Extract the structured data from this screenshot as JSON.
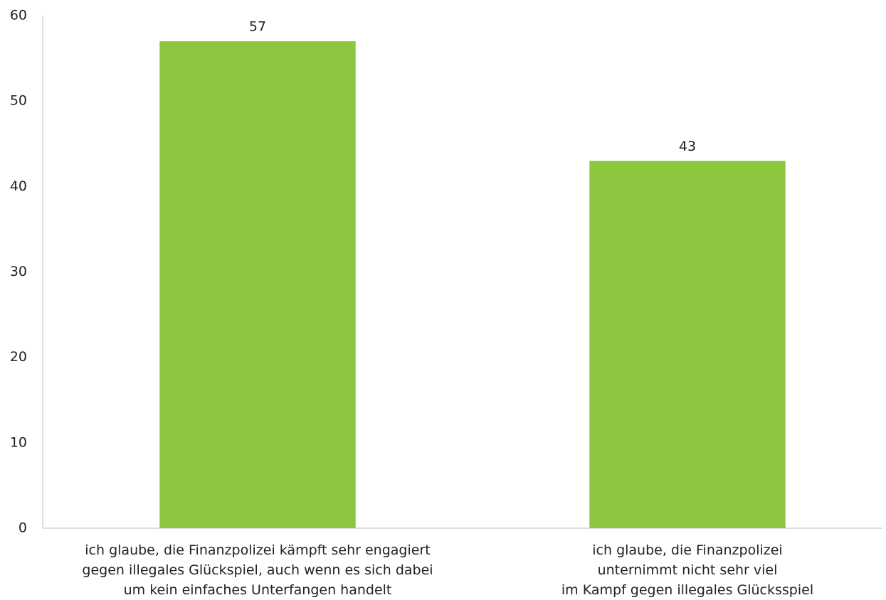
{
  "chart_data": {
    "type": "bar",
    "categories": [
      "ich glaube, die Finanzpolizei kämpft sehr engagiert\ngegen illegales Glückspiel, auch wenn es sich dabei\num kein einfaches Unterfangen handelt",
      "ich glaube, die Finanzpolizei\nunternimmt nicht sehr viel\nim Kampf gegen illegales Glücksspiel"
    ],
    "values": [
      57,
      43
    ],
    "color": "#8dc63f",
    "ylim": [
      0,
      60
    ],
    "yticks": [
      0,
      10,
      20,
      30,
      40,
      50,
      60
    ],
    "grid": false
  }
}
